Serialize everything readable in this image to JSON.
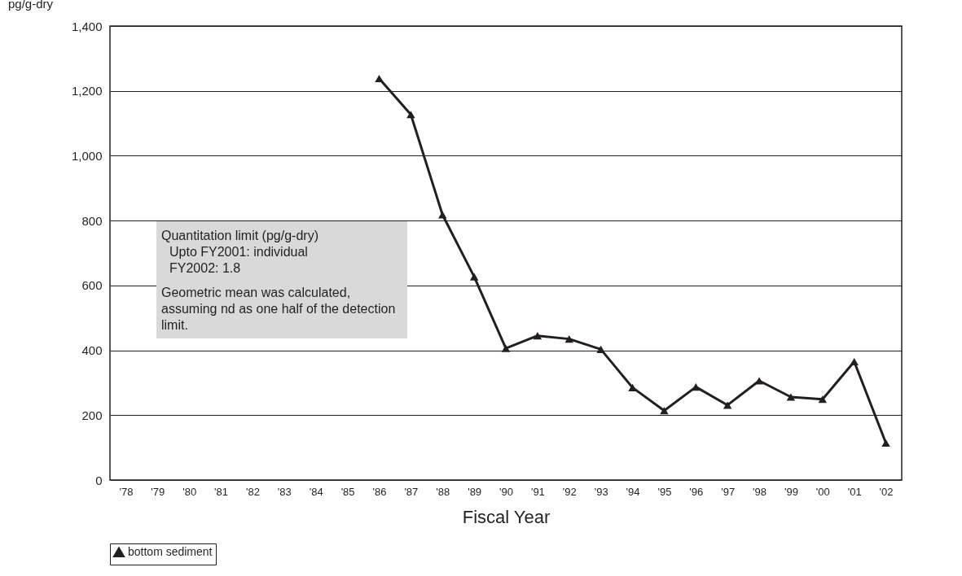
{
  "chart_data": {
    "type": "line",
    "xlabel": "Fiscal Year",
    "ylabel": "pg/g-dry",
    "categories": [
      "'78",
      "'79",
      "'80",
      "'81",
      "'82",
      "'83",
      "'84",
      "'85",
      "'86",
      "'87",
      "'88",
      "'89",
      "'90",
      "'91",
      "'92",
      "'93",
      "'94",
      "'95",
      "'96",
      "'97",
      "'98",
      "'99",
      "'00",
      "'01",
      "'02"
    ],
    "series": [
      {
        "name": "bottom sediment",
        "color": "#231f20",
        "values": [
          null,
          null,
          null,
          null,
          null,
          null,
          null,
          null,
          1238,
          1127,
          818,
          627,
          406,
          445,
          435,
          403,
          285,
          214,
          287,
          231,
          306,
          256,
          249,
          365,
          114
        ]
      }
    ],
    "ylim": [
      0,
      1400
    ],
    "yticks": [
      {
        "value": 0,
        "label": "0"
      },
      {
        "value": 200,
        "label": "200"
      },
      {
        "value": 400,
        "label": "400"
      },
      {
        "value": 600,
        "label": "600"
      },
      {
        "value": 800,
        "label": "800"
      },
      {
        "value": 1000,
        "label": "1,000"
      },
      {
        "value": 1200,
        "label": "1,200"
      },
      {
        "value": 1400,
        "label": "1,400"
      }
    ],
    "grid": "y",
    "legend": "bottom",
    "marker": "triangle",
    "line_style": "solid",
    "annotations": [
      "Quantitation limit (pg/g-dry)",
      "Upto FY2001: individual",
      "FY2002: 1.8",
      "Geometric mean was calculated, assuming nd as one half of the detection limit."
    ]
  }
}
